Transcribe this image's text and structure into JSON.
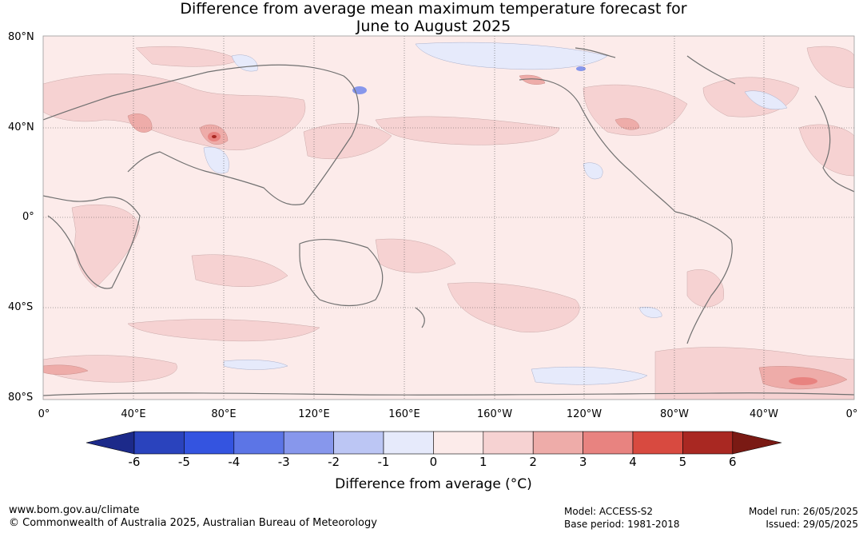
{
  "title_line1": "Difference from average mean maximum temperature forecast for",
  "title_line2": "June to August 2025",
  "latitude_labels": [
    "80°N",
    "40°N",
    "0°",
    "40°S",
    "80°S"
  ],
  "longitude_labels": [
    "0°",
    "40°E",
    "80°E",
    "120°E",
    "160°E",
    "160°W",
    "120°W",
    "80°W",
    "40°W",
    "0°"
  ],
  "colorbar": {
    "ticks": [
      "-6",
      "-5",
      "-4",
      "-3",
      "-2",
      "-1",
      "0",
      "1",
      "2",
      "3",
      "4",
      "5",
      "6"
    ],
    "colors": [
      "#1c2a8a",
      "#2a43bd",
      "#3454e0",
      "#5c75e6",
      "#8797ec",
      "#bcc6f4",
      "#e6eafb",
      "#fcebea",
      "#f6d2d2",
      "#eeaca9",
      "#e88380",
      "#d84a40",
      "#a92822",
      "#7a1a14"
    ],
    "label": "Difference from average (°C)"
  },
  "footer": {
    "website": "www.bom.gov.au/climate",
    "copyright": "© Commonwealth of Australia 2025, Australian Bureau of Meteorology",
    "model": "Model: ACCESS-S2",
    "base_period": "Base period: 1981-2018",
    "model_run": "Model run: 26/05/2025",
    "issued": "Issued: 29/05/2025"
  }
}
